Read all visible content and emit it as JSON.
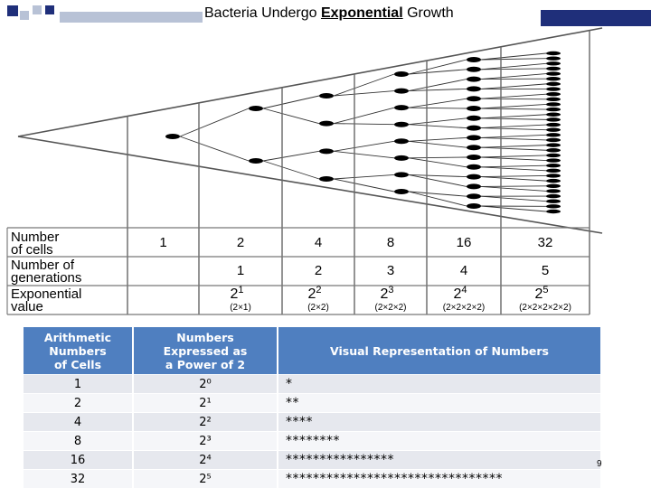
{
  "slide": {
    "title_prefix": "Bacteria Undergo ",
    "title_emphasis": "Exponential",
    "title_suffix": " Growth",
    "page_number": "9"
  },
  "diagram": {
    "row_labels": {
      "cells_line1": "Number",
      "cells_line2": "of cells",
      "generations_line1": "Number of",
      "generations_line2": "generations",
      "exponential_line1": "Exponential",
      "exponential_line2": "value"
    },
    "number_of_cells": [
      "1",
      "2",
      "4",
      "8",
      "16",
      "32"
    ],
    "number_of_generations": [
      "",
      "1",
      "2",
      "3",
      "4",
      "5"
    ],
    "exponential_values": [
      {
        "base": "",
        "exp": "",
        "expansion": ""
      },
      {
        "base": "2",
        "exp": "1",
        "expansion": "(2×1)"
      },
      {
        "base": "2",
        "exp": "2",
        "expansion": "(2×2)"
      },
      {
        "base": "2",
        "exp": "3",
        "expansion": "(2×2×2)"
      },
      {
        "base": "2",
        "exp": "4",
        "expansion": "(2×2×2×2)"
      },
      {
        "base": "2",
        "exp": "5",
        "expansion": "(2×2×2×2×2)"
      }
    ]
  },
  "table": {
    "headers": [
      [
        "Arithmetic",
        "Numbers",
        "of Cells"
      ],
      [
        "Numbers",
        "Expressed as",
        "a Power of 2"
      ],
      [
        "Visual Representation of Numbers"
      ]
    ],
    "rows": [
      {
        "cells": "1",
        "power": "2⁰",
        "visual": "*"
      },
      {
        "cells": "2",
        "power": "2¹",
        "visual": "**"
      },
      {
        "cells": "4",
        "power": "2²",
        "visual": "****"
      },
      {
        "cells": "8",
        "power": "2³",
        "visual": "********"
      },
      {
        "cells": "16",
        "power": "2⁴",
        "visual": "****************"
      },
      {
        "cells": "32",
        "power": "2⁵",
        "visual": "********************************"
      }
    ]
  },
  "colors": {
    "header_blue": "#4f7fc0",
    "accent_navy": "#1f2f7a",
    "row_alt": "#e6e8ee"
  }
}
